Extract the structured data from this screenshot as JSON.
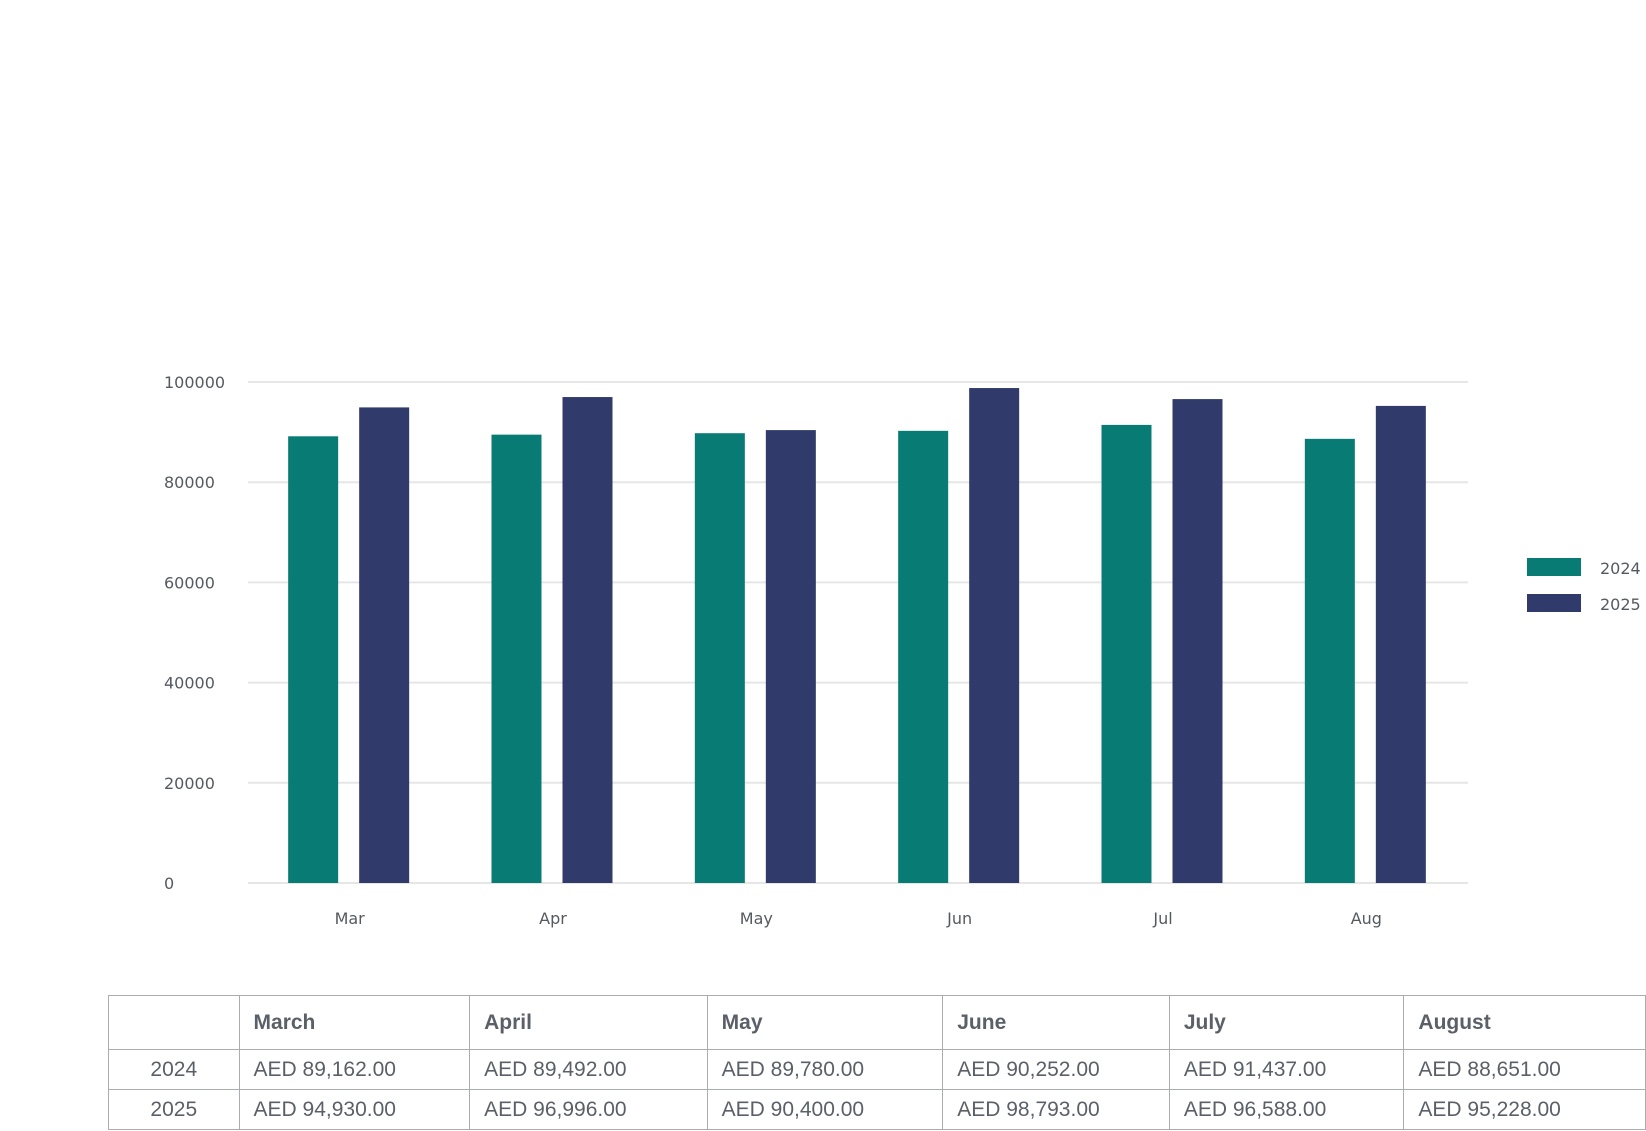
{
  "chart_data": {
    "type": "bar",
    "categories": [
      "Mar",
      "Apr",
      "May",
      "Jun",
      "Jul",
      "Aug"
    ],
    "series": [
      {
        "name": "2024",
        "color": "#087b74",
        "values": [
          89162,
          89492,
          89780,
          90252,
          91437,
          88651
        ]
      },
      {
        "name": "2025",
        "color": "#303a6b",
        "values": [
          94930,
          96996,
          90400,
          98793,
          96588,
          95228
        ]
      }
    ],
    "ylim": [
      0,
      100000
    ],
    "yticks": [
      0,
      20000,
      40000,
      60000,
      80000,
      100000
    ],
    "grid": true,
    "legend": "right"
  },
  "table": {
    "headers": [
      "",
      "March",
      "April",
      "May",
      "June",
      "July",
      "August"
    ],
    "rows": [
      {
        "label": "2024",
        "cells": [
          "AED 89,162.00",
          "AED 89,492.00",
          "AED 89,780.00",
          "AED 90,252.00",
          "AED 91,437.00",
          "AED 88,651.00"
        ]
      },
      {
        "label": "2025",
        "cells": [
          "AED 94,930.00",
          "AED 96,996.00",
          "AED 90,400.00",
          "AED 98,793.00",
          "AED 96,588.00",
          "AED 95,228.00"
        ]
      }
    ]
  }
}
